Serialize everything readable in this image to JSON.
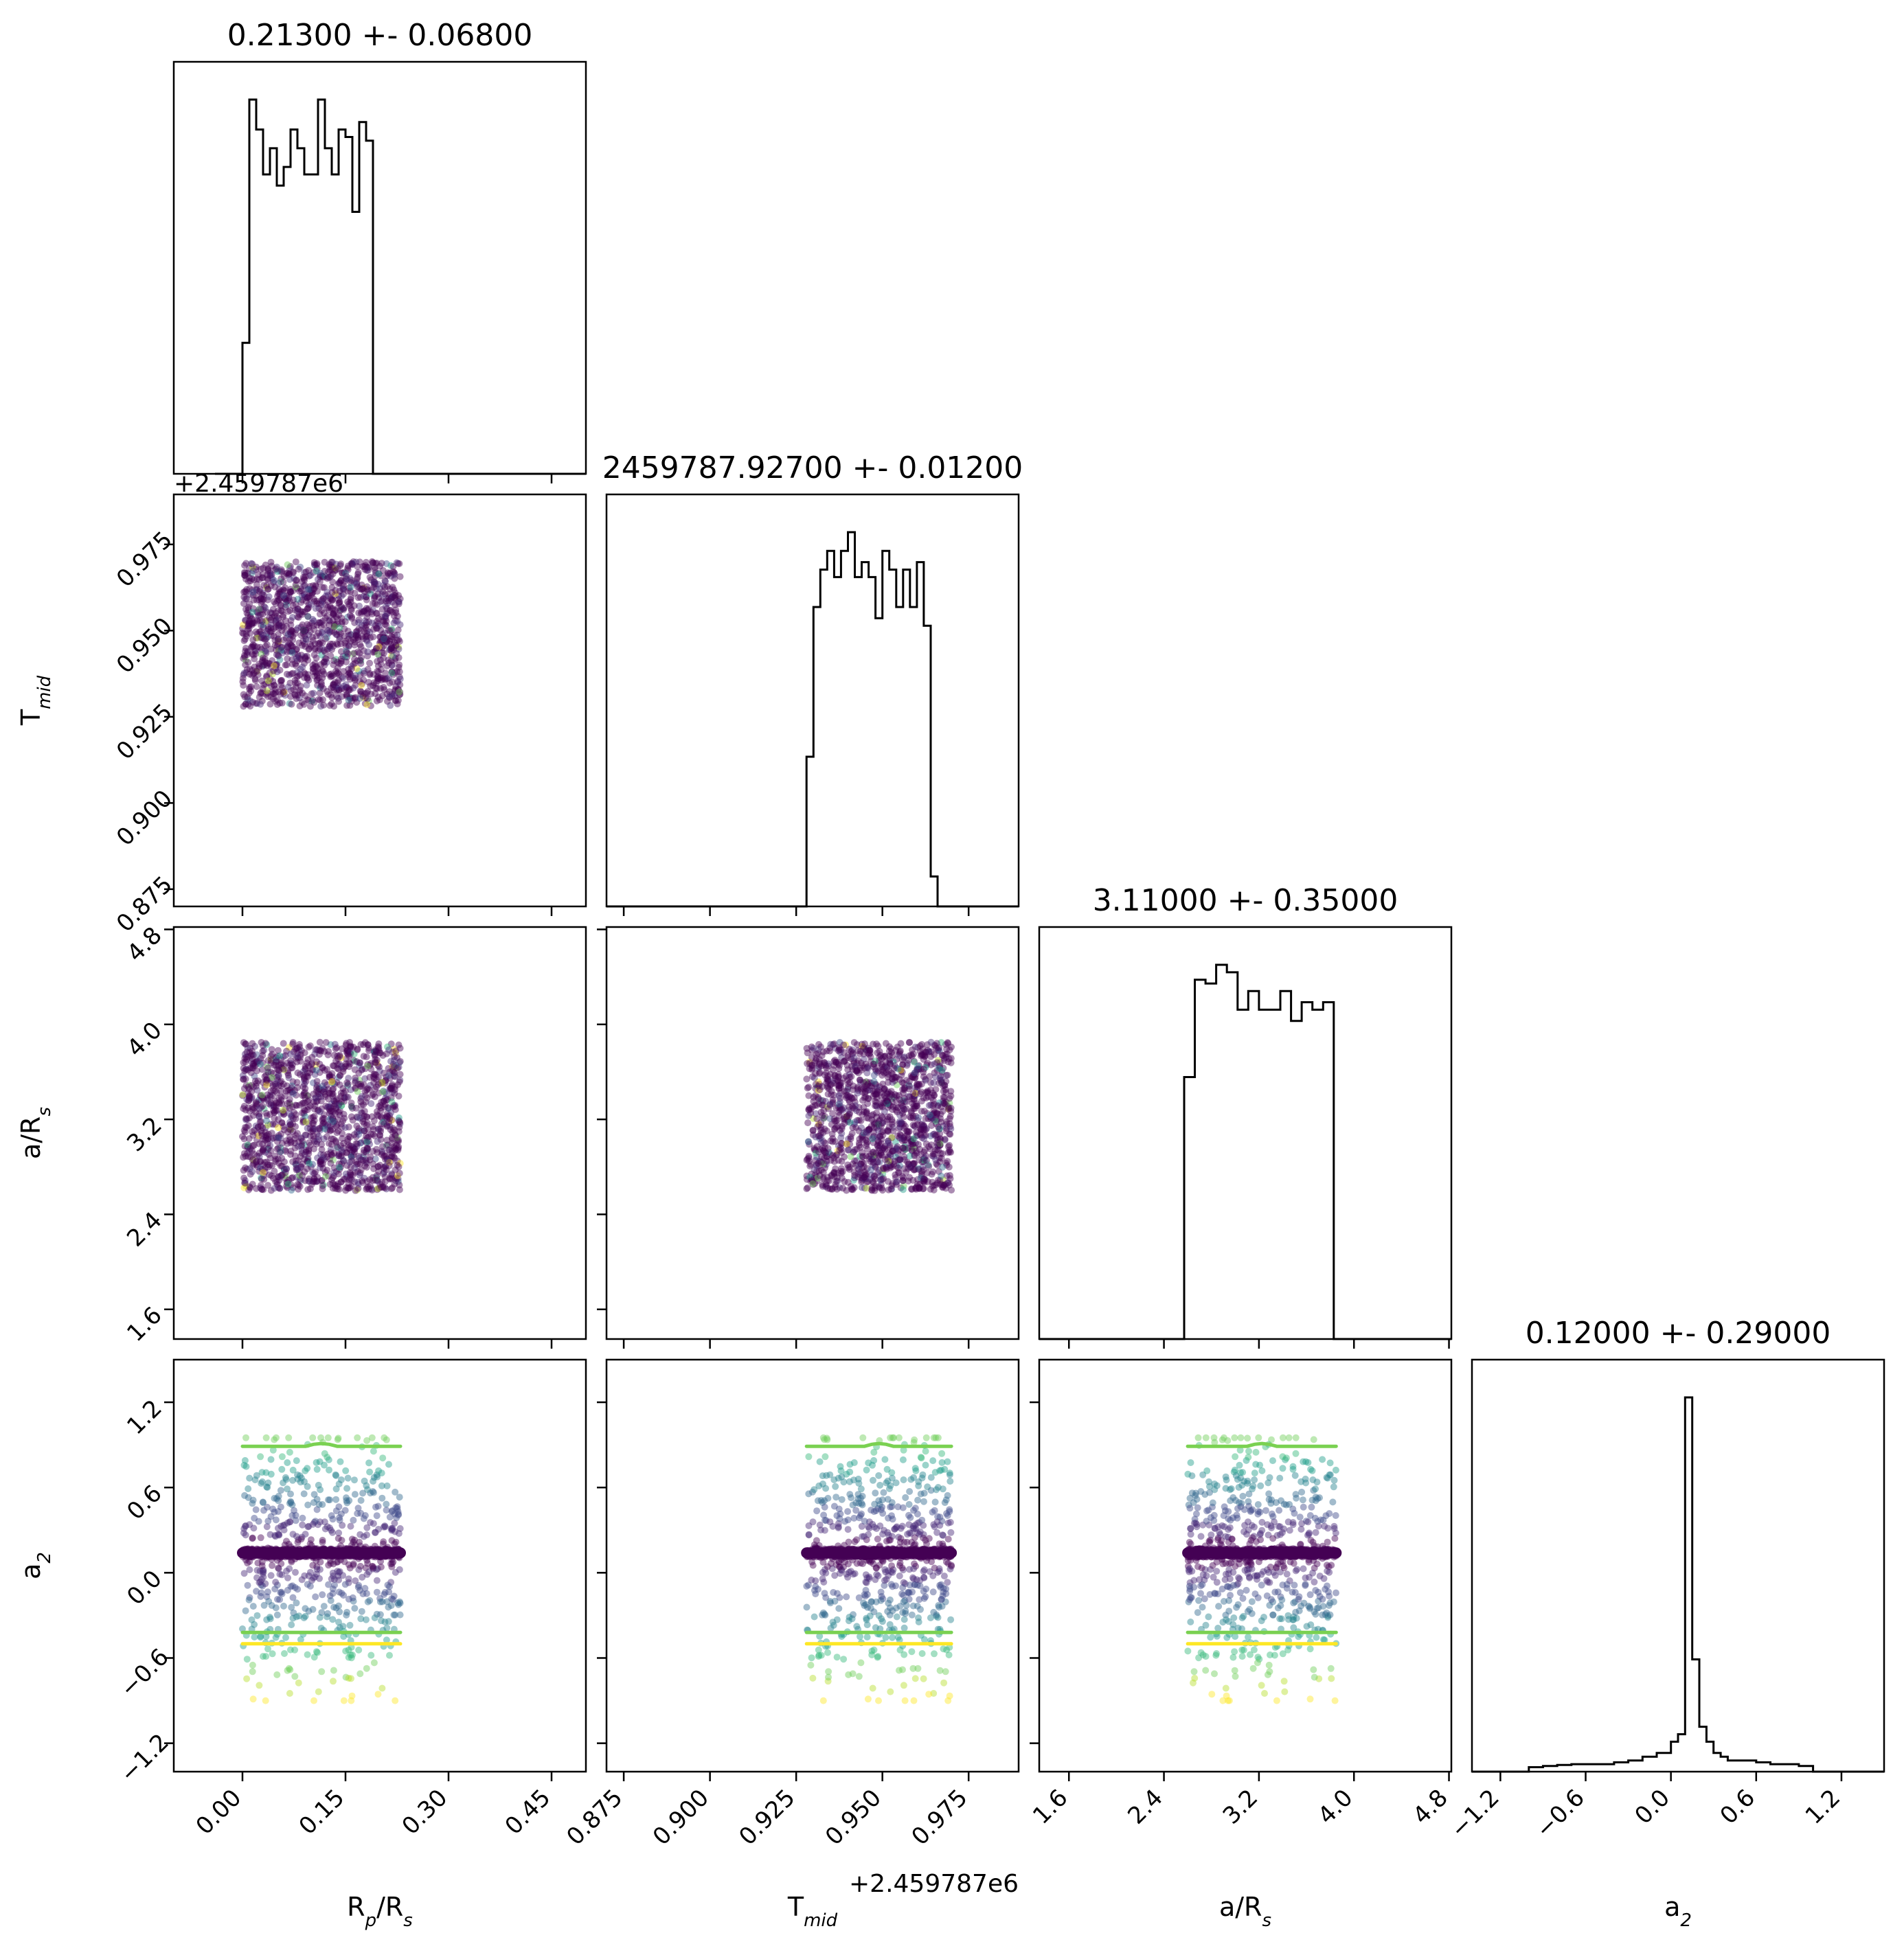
{
  "chart_data": {
    "type": "corner",
    "params": [
      {
        "id": "rp",
        "label": "R",
        "label_sub": "p",
        "label_tail": "/R",
        "label_sub2": "s",
        "title": "0.21300 +- 0.06800",
        "range": [
          -0.1,
          0.5
        ],
        "ticks": [
          0.0,
          0.15,
          0.3,
          0.45
        ],
        "tick_labels": [
          "0.00",
          "0.15",
          "0.30",
          "0.45"
        ],
        "offset_text": "",
        "hist": {
          "bin_edges": [
            -0.04,
            0.0,
            0.01,
            0.02,
            0.03,
            0.04,
            0.05,
            0.06,
            0.07,
            0.08,
            0.09,
            0.1,
            0.11,
            0.12,
            0.13,
            0.14,
            0.15,
            0.16,
            0.17,
            0.18,
            0.19,
            0.2,
            0.21,
            0.22,
            0.23,
            0.5
          ],
          "counts": [
            0,
            0.35,
            1.0,
            0.92,
            0.8,
            0.87,
            0.77,
            0.82,
            0.92,
            0.87,
            0.8,
            0.8,
            1.0,
            0.87,
            0.8,
            0.92,
            0.9,
            0.7,
            0.94,
            0.89,
            0,
            0,
            0,
            0,
            0
          ]
        }
      },
      {
        "id": "tmid",
        "label": "T",
        "label_sub": "mid",
        "label_tail": "",
        "label_sub2": "",
        "title": "2459787.92700 +- 0.01200",
        "range": [
          0.87,
          0.9895
        ],
        "ticks": [
          0.875,
          0.9,
          0.925,
          0.95,
          0.975
        ],
        "tick_labels": [
          "0.875",
          "0.900",
          "0.925",
          "0.950",
          "0.975"
        ],
        "offset_text": "+2.459787e6",
        "hist": {
          "bin_edges": [
            0.87,
            0.928,
            0.93,
            0.932,
            0.934,
            0.936,
            0.938,
            0.94,
            0.942,
            0.944,
            0.946,
            0.948,
            0.95,
            0.952,
            0.954,
            0.956,
            0.958,
            0.96,
            0.962,
            0.964,
            0.966,
            0.968,
            0.97,
            0.9895
          ],
          "counts": [
            0,
            0.4,
            0.8,
            0.9,
            0.95,
            0.88,
            0.95,
            1.0,
            0.88,
            0.92,
            0.88,
            0.77,
            0.95,
            0.9,
            0.8,
            0.9,
            0.8,
            0.92,
            0.75,
            0.08,
            0,
            0,
            0
          ]
        }
      },
      {
        "id": "ars",
        "label": "a/R",
        "label_sub": "s",
        "label_tail": "",
        "label_sub2": "",
        "title": "3.11000 +- 0.35000",
        "range": [
          1.35,
          4.82
        ],
        "ticks": [
          1.6,
          2.4,
          3.2,
          4.0,
          4.8
        ],
        "tick_labels": [
          "1.6",
          "2.4",
          "3.2",
          "4.0",
          "4.8"
        ],
        "offset_text": "",
        "hist": {
          "bin_edges": [
            1.35,
            2.57,
            2.66,
            2.75,
            2.84,
            2.93,
            3.02,
            3.11,
            3.2,
            3.29,
            3.38,
            3.47,
            3.56,
            3.65,
            3.74,
            3.83,
            4.82
          ],
          "counts": [
            0,
            0.7,
            0.96,
            0.95,
            1.0,
            0.98,
            0.88,
            0.93,
            0.88,
            0.88,
            0.93,
            0.85,
            0.9,
            0.88,
            0.9,
            0,
            0
          ]
        }
      },
      {
        "id": "a2",
        "label": "a",
        "label_sub": "2",
        "label_tail": "",
        "label_sub2": "",
        "title": "0.12000 +- 0.29000",
        "range": [
          -1.4,
          1.5
        ],
        "ticks": [
          -1.2,
          -0.6,
          0.0,
          0.6,
          1.2
        ],
        "tick_labels": [
          "−1.2",
          "−0.6",
          "0.0",
          "0.6",
          "1.2"
        ],
        "offset_text": "",
        "hist": {
          "bin_edges": [
            -1.4,
            -1.0,
            -0.9,
            -0.8,
            -0.7,
            -0.6,
            -0.5,
            -0.4,
            -0.3,
            -0.2,
            -0.1,
            0.0,
            0.05,
            0.1,
            0.15,
            0.2,
            0.25,
            0.3,
            0.35,
            0.4,
            0.5,
            0.6,
            0.7,
            0.8,
            0.9,
            1.0,
            1.5
          ],
          "counts": [
            0,
            0.012,
            0.015,
            0.018,
            0.02,
            0.02,
            0.02,
            0.025,
            0.03,
            0.04,
            0.05,
            0.08,
            0.1,
            1.0,
            0.3,
            0.12,
            0.08,
            0.05,
            0.04,
            0.03,
            0.03,
            0.025,
            0.02,
            0.02,
            0.015,
            0,
            0
          ]
        }
      }
    ],
    "scatter": {
      "colormap": "viridis",
      "point_clouds": {
        "rp": {
          "min": 0.0,
          "max": 0.23
        },
        "tmid": {
          "min": 0.928,
          "max": 0.97
        },
        "ars": {
          "min": 2.6,
          "max": 3.85
        },
        "a2_core": {
          "center": 0.14,
          "half_width": 0.05
        },
        "a2_wide": {
          "min": -0.9,
          "max": 0.95
        }
      },
      "a2_contour_levels": [
        0.89,
        0.14,
        -0.42,
        -0.5
      ],
      "a2_contour_colors": [
        "#7ad151",
        "#7ad151",
        "#fde725"
      ]
    },
    "colors": {
      "hist_line": "#000000",
      "axes": "#000000"
    }
  }
}
